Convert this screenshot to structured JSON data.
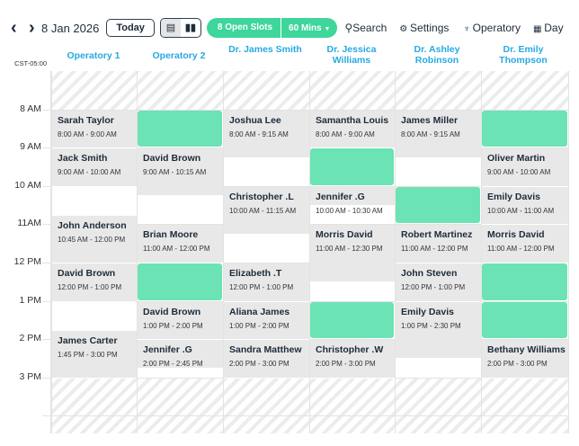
{
  "toolbar": {
    "prev": "‹",
    "next": "›",
    "date": "8 Jan 2026",
    "today": "Today",
    "open_slots": "8 Open Slots",
    "duration": "60 Mins",
    "search": "Search",
    "settings": "Settings",
    "operatory": "Operatory",
    "view": "Day",
    "accent": "#3ed69a"
  },
  "timezone": "CST-05:00",
  "columns": [
    "Operatory 1",
    "Operatory 2",
    "Dr. James Smith",
    "Dr. Jessica Williams",
    "Dr. Ashley Robinson",
    "Dr. Emily Thompson"
  ],
  "hours": [
    {
      "h": 8,
      "label": "8 AM"
    },
    {
      "h": 9,
      "label": "9 AM"
    },
    {
      "h": 10,
      "label": "10 AM"
    },
    {
      "h": 11,
      "label": "11AM"
    },
    {
      "h": 12,
      "label": "12 PM"
    },
    {
      "h": 13,
      "label": "1 PM"
    },
    {
      "h": 14,
      "label": "2 PM"
    },
    {
      "h": 15,
      "label": "3 PM"
    }
  ],
  "events": [
    {
      "col": 0,
      "name": "Sarah Taylor",
      "time": "8:00 AM - 9:00 AM"
    },
    {
      "col": 0,
      "name": "Jack Smith",
      "time": "9:00 AM - 10:00 AM"
    },
    {
      "col": 0,
      "name": "John Anderson",
      "time": "10:45 AM - 12:00 PM"
    },
    {
      "col": 0,
      "name": "David Brown",
      "time": "12:00 PM - 1:00 PM"
    },
    {
      "col": 0,
      "name": "James Carter",
      "time": "1:45 PM - 3:00 PM"
    },
    {
      "col": 1,
      "name": "David Brown",
      "time": "9:00 AM - 10:15 AM"
    },
    {
      "col": 1,
      "name": "Brian Moore",
      "time": "11:00 AM - 12:00 PM"
    },
    {
      "col": 1,
      "name": "David Brown",
      "time": "1:00 PM - 2:00 PM"
    },
    {
      "col": 1,
      "name": "Jennifer .G",
      "time": "2:00 PM - 2:45 PM"
    },
    {
      "col": 2,
      "name": "Joshua Lee",
      "time": "8:00 AM - 9:15 AM"
    },
    {
      "col": 2,
      "name": "Christopher .L",
      "time": "10:00 AM - 11:15 AM"
    },
    {
      "col": 2,
      "name": "Elizabeth .T",
      "time": "12:00 PM - 1:00 PM"
    },
    {
      "col": 2,
      "name": "Aliana James",
      "time": "1:00 PM - 2:00 PM"
    },
    {
      "col": 2,
      "name": "Sandra Matthew",
      "time": "2:00 PM - 3:00 PM"
    },
    {
      "col": 3,
      "name": "Samantha Louis",
      "time": "8:00 AM - 9:00 AM"
    },
    {
      "col": 3,
      "name": "Jennifer .G",
      "time": "10:00 AM - 10:30 AM"
    },
    {
      "col": 3,
      "name": "Morris David",
      "time": "11:00 AM - 12:30 PM"
    },
    {
      "col": 3,
      "name": "Christopher .W",
      "time": "2:00 PM - 3:00 PM"
    },
    {
      "col": 4,
      "name": "James Miller",
      "time": "8:00 AM - 9:15 AM"
    },
    {
      "col": 4,
      "name": "Robert Martinez",
      "time": "11:00 AM - 12:00 PM"
    },
    {
      "col": 4,
      "name": "John Steven",
      "time": "12:00 PM - 1:00 PM"
    },
    {
      "col": 4,
      "name": "Emily Davis",
      "time": "1:00 PM - 2:30 PM"
    },
    {
      "col": 5,
      "name": "Oliver Martin",
      "time": "9:00 AM - 10:00 AM"
    },
    {
      "col": 5,
      "name": "Emily Davis",
      "time": "10:00 AM - 11:00 AM"
    },
    {
      "col": 5,
      "name": "Morris David",
      "time": "11:00 AM - 12:00 PM"
    },
    {
      "col": 5,
      "name": "Bethany Williams",
      "time": "2:00 PM - 3:00 PM"
    }
  ],
  "open_slots": [
    {
      "col": 1,
      "start": 8,
      "end": 9
    },
    {
      "col": 1,
      "start": 12,
      "end": 13
    },
    {
      "col": 3,
      "start": 9,
      "end": 10
    },
    {
      "col": 3,
      "start": 13,
      "end": 14
    },
    {
      "col": 4,
      "start": 10,
      "end": 11
    },
    {
      "col": 5,
      "start": 8,
      "end": 9
    },
    {
      "col": 5,
      "start": 12,
      "end": 13
    },
    {
      "col": 5,
      "start": 13,
      "end": 14
    }
  ]
}
